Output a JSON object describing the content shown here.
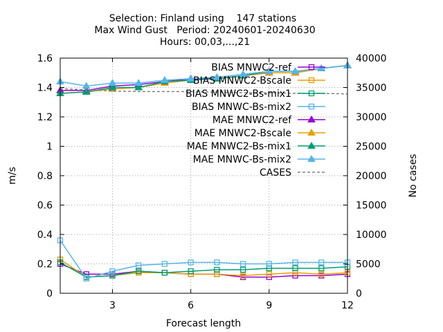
{
  "chart_data": {
    "type": "line",
    "title_lines": [
      "Selection: Finland using    147 stations",
      "Max Wind Gust   Period: 20240601-20240630",
      "Hours: 00,03,...,21"
    ],
    "xlabel": "Forecast length",
    "ylabel": "m/s",
    "y2label": "No cases",
    "xlim": [
      1,
      12
    ],
    "ylim": [
      0,
      1.6
    ],
    "y2lim": [
      0,
      40000
    ],
    "xticks": [
      3,
      6,
      9,
      12
    ],
    "yticks": [
      0,
      0.2,
      0.4,
      0.6,
      0.8,
      1,
      1.2,
      1.4,
      1.6
    ],
    "y2ticks": [
      0,
      5000,
      10000,
      15000,
      20000,
      25000,
      30000,
      35000,
      40000
    ],
    "legend_position": "top-right",
    "grid": true,
    "x": [
      1,
      2,
      3,
      4,
      5,
      6,
      7,
      8,
      9,
      10,
      11,
      12
    ],
    "series": [
      {
        "name": "BIAS MNWC2-ref",
        "color": "#9400d3",
        "marker": "square-open",
        "axis": "y",
        "values": [
          0.2,
          0.13,
          0.13,
          0.15,
          0.14,
          0.13,
          0.13,
          0.11,
          0.11,
          0.12,
          0.12,
          0.13
        ]
      },
      {
        "name": "BIAS MNWC2-Bscale",
        "color": "#e69f00",
        "marker": "square-open",
        "axis": "y",
        "values": [
          0.23,
          0.11,
          0.12,
          0.14,
          0.14,
          0.13,
          0.13,
          0.12,
          0.13,
          0.14,
          0.13,
          0.14
        ]
      },
      {
        "name": "BIAS MNWC2-Bs-mix1",
        "color": "#009e73",
        "marker": "square-open",
        "axis": "y",
        "values": [
          0.21,
          0.11,
          0.12,
          0.15,
          0.14,
          0.15,
          0.16,
          0.16,
          0.17,
          0.17,
          0.17,
          0.18
        ]
      },
      {
        "name": "BIAS MNWC-Bs-mix2",
        "color": "#56b4e9",
        "marker": "square-open",
        "axis": "y",
        "values": [
          0.36,
          0.1,
          0.15,
          0.19,
          0.2,
          0.21,
          0.21,
          0.2,
          0.2,
          0.21,
          0.21,
          0.21
        ]
      },
      {
        "name": "MAE MNWC2-ref",
        "color": "#9400d3",
        "marker": "triangle-filled",
        "axis": "y",
        "values": [
          1.38,
          1.38,
          1.41,
          1.42,
          1.44,
          1.46,
          1.46,
          1.48,
          1.5,
          1.5,
          1.53,
          1.55
        ]
      },
      {
        "name": "MAE MNWC2-Bscale",
        "color": "#e69f00",
        "marker": "triangle-filled",
        "axis": "y",
        "values": [
          1.36,
          1.37,
          1.39,
          1.4,
          1.43,
          1.45,
          1.46,
          1.48,
          1.5,
          1.5,
          1.53,
          1.55
        ]
      },
      {
        "name": "MAE MNWC2-Bs-mix1",
        "color": "#009e73",
        "marker": "triangle-filled",
        "axis": "y",
        "values": [
          1.36,
          1.37,
          1.4,
          1.4,
          1.44,
          1.45,
          1.46,
          1.48,
          1.51,
          1.51,
          1.53,
          1.55
        ]
      },
      {
        "name": "MAE MNWC-Bs-mix2",
        "color": "#56b4e9",
        "marker": "triangle-filled",
        "axis": "y",
        "values": [
          1.44,
          1.41,
          1.43,
          1.43,
          1.45,
          1.46,
          1.47,
          1.49,
          1.51,
          1.51,
          1.53,
          1.55
        ]
      },
      {
        "name": "CASES",
        "color": "#808080",
        "marker": "none",
        "dash": true,
        "axis": "y2",
        "values": [
          34800,
          34600,
          34400,
          34300,
          34300,
          34300,
          34200,
          34100,
          34100,
          34000,
          34000,
          33900
        ]
      }
    ]
  }
}
